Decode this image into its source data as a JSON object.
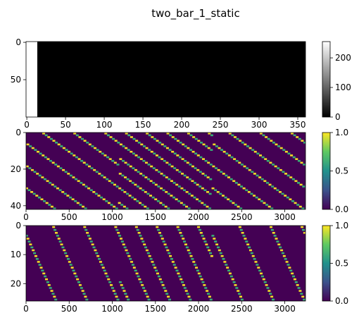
{
  "figure": {
    "title": "two_bar_1_static"
  },
  "colors": {
    "viridis_low": "#440154",
    "viridis_high": "#fde725"
  },
  "chart_data": [
    {
      "type": "heatmap",
      "colormap": "gray",
      "description_values": "white bar at columns 0-15, remaining black",
      "xlim": [
        -1,
        360
      ],
      "ylim": [
        100,
        -1
      ],
      "xticks": [
        "0",
        "50",
        "100",
        "150",
        "200",
        "250",
        "300",
        "350"
      ],
      "yticks": [
        "0",
        "50"
      ],
      "colorbar": {
        "range": [
          0,
          255
        ],
        "ticks": [
          "0",
          "100",
          "200"
        ]
      },
      "bar": {
        "x_start": 0,
        "x_end": 15,
        "value": 255
      }
    },
    {
      "type": "heatmap",
      "colormap": "viridis",
      "xlim": [
        0,
        3240
      ],
      "ylim": [
        42,
        0
      ],
      "xticks": [
        "0",
        "500",
        "1000",
        "1500",
        "2000",
        "2500",
        "3000"
      ],
      "yticks": [
        "0",
        "20",
        "40"
      ],
      "colorbar": {
        "range": [
          0.0,
          1.0
        ],
        "ticks": [
          "0.0",
          "0.5",
          "1.0"
        ]
      },
      "segments": [
        {
          "x_start": 0,
          "x_end": 1080,
          "slope": 0.034,
          "spacing": 360
        },
        {
          "x_start": 1080,
          "x_end": 2160,
          "slope": 0.034,
          "spacing": 240
        },
        {
          "x_start": 2160,
          "x_end": 3240,
          "slope": 0.034,
          "spacing": 360
        }
      ]
    },
    {
      "type": "heatmap",
      "colormap": "viridis",
      "xlim": [
        0,
        3240
      ],
      "ylim": [
        26,
        0
      ],
      "xticks": [
        "0",
        "500",
        "1000",
        "1500",
        "2000",
        "2500",
        "3000"
      ],
      "yticks": [
        "0",
        "10",
        "20"
      ],
      "colorbar": {
        "range": [
          0.0,
          1.0
        ],
        "ticks": [
          "0.0",
          "0.5",
          "1.0"
        ]
      },
      "segments": [
        {
          "x_start": 0,
          "x_end": 1080,
          "slope": 0.065,
          "spacing": 360
        },
        {
          "x_start": 1080,
          "x_end": 2160,
          "slope": 0.065,
          "spacing": 240
        },
        {
          "x_start": 2160,
          "x_end": 3240,
          "slope": 0.065,
          "spacing": 360
        }
      ]
    }
  ]
}
